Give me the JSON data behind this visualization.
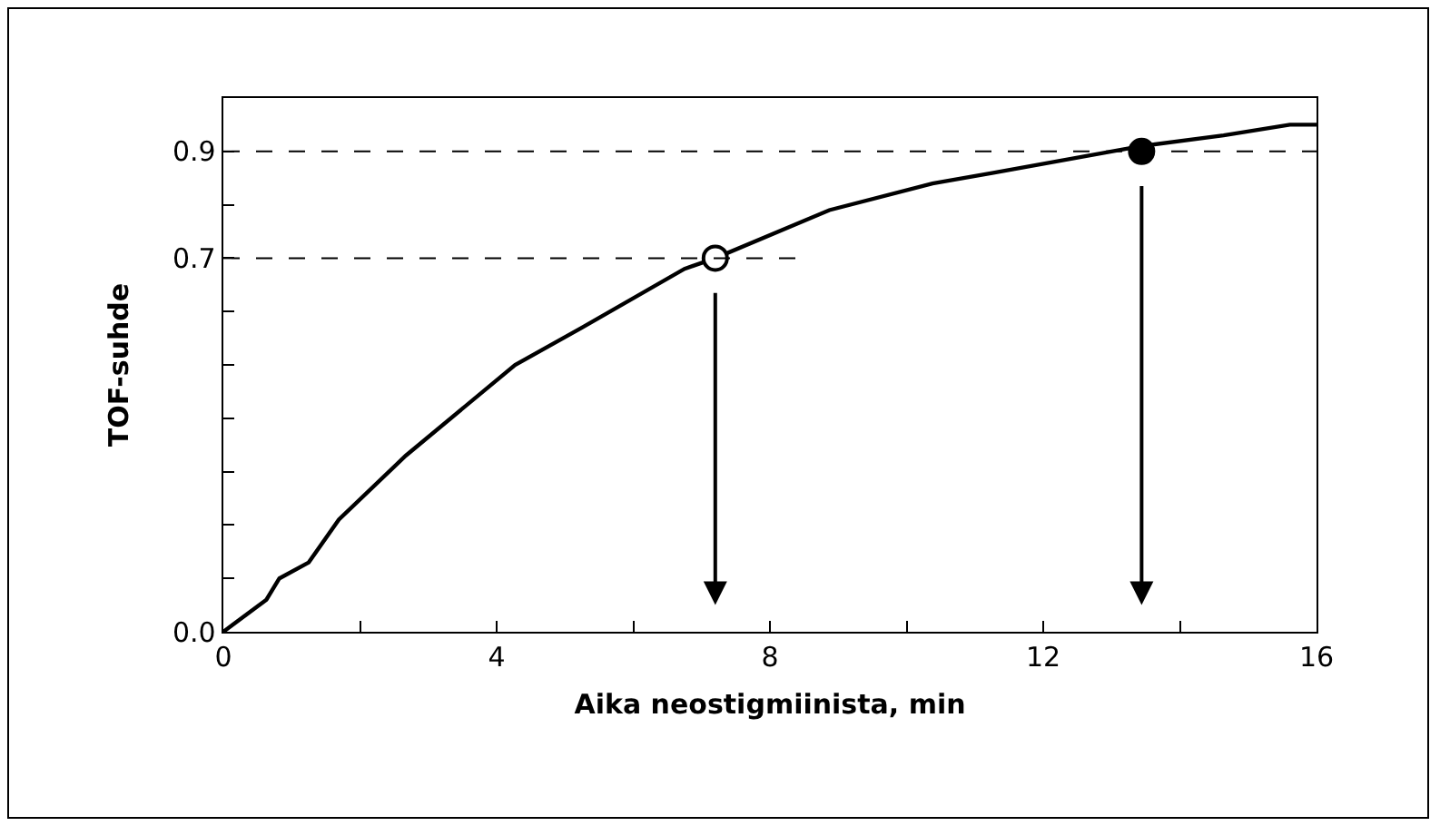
{
  "chart_data": {
    "type": "line",
    "xlabel": "Aika neostigmiinista, min",
    "ylabel": "TOF-suhde",
    "xlim": [
      0,
      16
    ],
    "ylim": [
      0,
      1
    ],
    "xticks": [
      0,
      {
        "value": 2,
        "label": null
      },
      4,
      {
        "value": 6,
        "label": null
      },
      8,
      {
        "value": 10,
        "label": null
      },
      12,
      {
        "value": 14,
        "label": null
      },
      16
    ],
    "yticks": [
      {
        "value": 0,
        "label": "0.0"
      },
      {
        "value": 0.1,
        "label": null
      },
      {
        "value": 0.2,
        "label": null
      },
      {
        "value": 0.3,
        "label": null
      },
      {
        "value": 0.4,
        "label": null
      },
      {
        "value": 0.5,
        "label": null
      },
      {
        "value": 0.6,
        "label": null
      },
      0.7,
      {
        "value": 0.8,
        "label": null
      },
      0.9
    ],
    "ref_lines": [
      {
        "axis": "y",
        "value": 0.7,
        "line_style": "dashed",
        "color": "#000000"
      },
      {
        "axis": "y",
        "value": 0.9,
        "line_style": "dashed",
        "color": "#000000"
      }
    ],
    "series": [
      {
        "color": "#000000",
        "marker": "none",
        "line_style": "solid",
        "x": [
          0,
          0.63,
          0.82,
          1.25,
          1.69,
          2.67,
          4.27,
          5.25,
          6.75,
          7.2,
          8.87,
          10.38,
          11.27,
          13.44,
          14.64,
          15.61,
          16
        ],
        "values": [
          0,
          0.06,
          0.1,
          0.13,
          0.21,
          0.33,
          0.5,
          0.57,
          0.68,
          0.7,
          0.79,
          0.84,
          0.86,
          0.91,
          0.93,
          0.95,
          0.95
        ]
      },
      {
        "type": "scatter",
        "color": "#ffffff",
        "marker": "circle",
        "x": [
          7.2
        ],
        "values": [
          0.7
        ]
      },
      {
        "type": "scatter",
        "color": "#000000",
        "marker": "circle",
        "x": [
          13.44
        ],
        "values": [
          0.9
        ]
      }
    ]
  }
}
